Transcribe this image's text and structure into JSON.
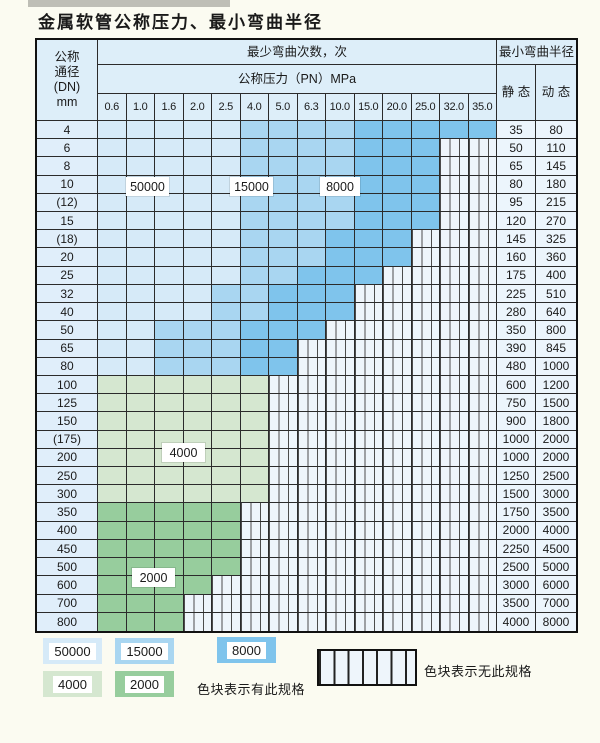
{
  "title": "金属软管公称压力、最小弯曲半径",
  "colors": {
    "cycles_50000": "#d6eaf8",
    "cycles_15000": "#a9d6f1",
    "cycles_8000": "#7fc4ec",
    "cycles_4000": "#d5e7d0",
    "cycles_2000": "#97cd9d",
    "no_spec_bg": "#eef5fb",
    "header_bg": "#ddeef9",
    "dn_col_bg": "#e0eefa",
    "value_col_bg": "#ecf5fc"
  },
  "table": {
    "header": {
      "dn_lines": [
        "公称",
        "通径",
        "(DN)",
        "mm"
      ],
      "bend_times": "最少弯曲次数，次",
      "pressure": "公称压力（PN）MPa",
      "radius": "最小弯曲半径",
      "static": "静 态",
      "dynamic": "动 态",
      "pressures": [
        "0.6",
        "1.0",
        "1.6",
        "2.0",
        "2.5",
        "4.0",
        "5.0",
        "6.3",
        "10.0",
        "15.0",
        "20.0",
        "25.0",
        "32.0",
        "35.0"
      ]
    },
    "cell_codes": {
      "L": {
        "cycles": "50000"
      },
      "M": {
        "cycles": "15000"
      },
      "D": {
        "cycles": "8000"
      },
      "G": {
        "cycles": "4000"
      },
      "g": {
        "cycles": "2000"
      },
      "X": {
        "cycles": "no-spec"
      }
    },
    "rows": [
      {
        "dn": "4",
        "pattern": "LLLLLMMMMDDDDD",
        "static": "35",
        "dynamic": "80"
      },
      {
        "dn": "6",
        "pattern": "LLLLLMMMMDDDXX",
        "static": "50",
        "dynamic": "110"
      },
      {
        "dn": "8",
        "pattern": "LLLLLMMMMDDDXX",
        "static": "65",
        "dynamic": "145"
      },
      {
        "dn": "10",
        "pattern": "LLLLLMMMMDDDXX",
        "static": "80",
        "dynamic": "180"
      },
      {
        "dn": "(12)",
        "pattern": "LLLLLMMMMDDDXX",
        "static": "95",
        "dynamic": "215"
      },
      {
        "dn": "15",
        "pattern": "LLLLLMMMMDDDXX",
        "static": "120",
        "dynamic": "270"
      },
      {
        "dn": "(18)",
        "pattern": "LLLLLMMMDDDXXX",
        "static": "145",
        "dynamic": "325"
      },
      {
        "dn": "20",
        "pattern": "LLLLLMMMDDDXXX",
        "static": "160",
        "dynamic": "360"
      },
      {
        "dn": "25",
        "pattern": "LLLLLMMDDDXXXX",
        "static": "175",
        "dynamic": "400"
      },
      {
        "dn": "32",
        "pattern": "LLLLMMDDDXXXXX",
        "static": "225",
        "dynamic": "510"
      },
      {
        "dn": "40",
        "pattern": "LLLLMMDDDXXXXX",
        "static": "280",
        "dynamic": "640"
      },
      {
        "dn": "50",
        "pattern": "LLMMMDDDXXXXXX",
        "static": "350",
        "dynamic": "800"
      },
      {
        "dn": "65",
        "pattern": "LLMMMDDXXXXXXX",
        "static": "390",
        "dynamic": "845"
      },
      {
        "dn": "80",
        "pattern": "LLMMMDDXXXXXXX",
        "static": "480",
        "dynamic": "1000"
      },
      {
        "dn": "100",
        "pattern": "GGGGGGXXXXXXXX",
        "static": "600",
        "dynamic": "1200"
      },
      {
        "dn": "125",
        "pattern": "GGGGGGXXXXXXXX",
        "static": "750",
        "dynamic": "1500"
      },
      {
        "dn": "150",
        "pattern": "GGGGGGXXXXXXXX",
        "static": "900",
        "dynamic": "1800"
      },
      {
        "dn": "(175)",
        "pattern": "GGGGGGXXXXXXXX",
        "static": "1000",
        "dynamic": "2000"
      },
      {
        "dn": "200",
        "pattern": "GGGGGGXXXXXXXX",
        "static": "1000",
        "dynamic": "2000"
      },
      {
        "dn": "250",
        "pattern": "GGGGGGXXXXXXXX",
        "static": "1250",
        "dynamic": "2500"
      },
      {
        "dn": "300",
        "pattern": "GGGGGGXXXXXXXX",
        "static": "1500",
        "dynamic": "3000"
      },
      {
        "dn": "350",
        "pattern": "gggggXXXXXXXXX",
        "static": "1750",
        "dynamic": "3500"
      },
      {
        "dn": "400",
        "pattern": "gggggXXXXXXXXX",
        "static": "2000",
        "dynamic": "4000"
      },
      {
        "dn": "450",
        "pattern": "gggggXXXXXXXXX",
        "static": "2250",
        "dynamic": "4500"
      },
      {
        "dn": "500",
        "pattern": "gggggXXXXXXXXX",
        "static": "2500",
        "dynamic": "5000"
      },
      {
        "dn": "600",
        "pattern": "ggggXXXXXXXXXX",
        "static": "3000",
        "dynamic": "6000"
      },
      {
        "dn": "700",
        "pattern": "gggXXXXXXXXXXX",
        "static": "3500",
        "dynamic": "7000"
      },
      {
        "dn": "800",
        "pattern": "gggXXXXXXXXXXX",
        "static": "4000",
        "dynamic": "8000"
      }
    ]
  },
  "overlay_labels": {
    "l50000": "50000",
    "l15000": "15000",
    "l8000": "8000",
    "l4000": "4000",
    "l2000": "2000"
  },
  "legend": {
    "items": [
      {
        "value": "50000"
      },
      {
        "value": "15000"
      },
      {
        "value": "8000"
      },
      {
        "value": "4000"
      },
      {
        "value": "2000"
      }
    ],
    "has_spec_note": "色块表示有此规格",
    "no_spec_note": "色块表示无此规格"
  }
}
